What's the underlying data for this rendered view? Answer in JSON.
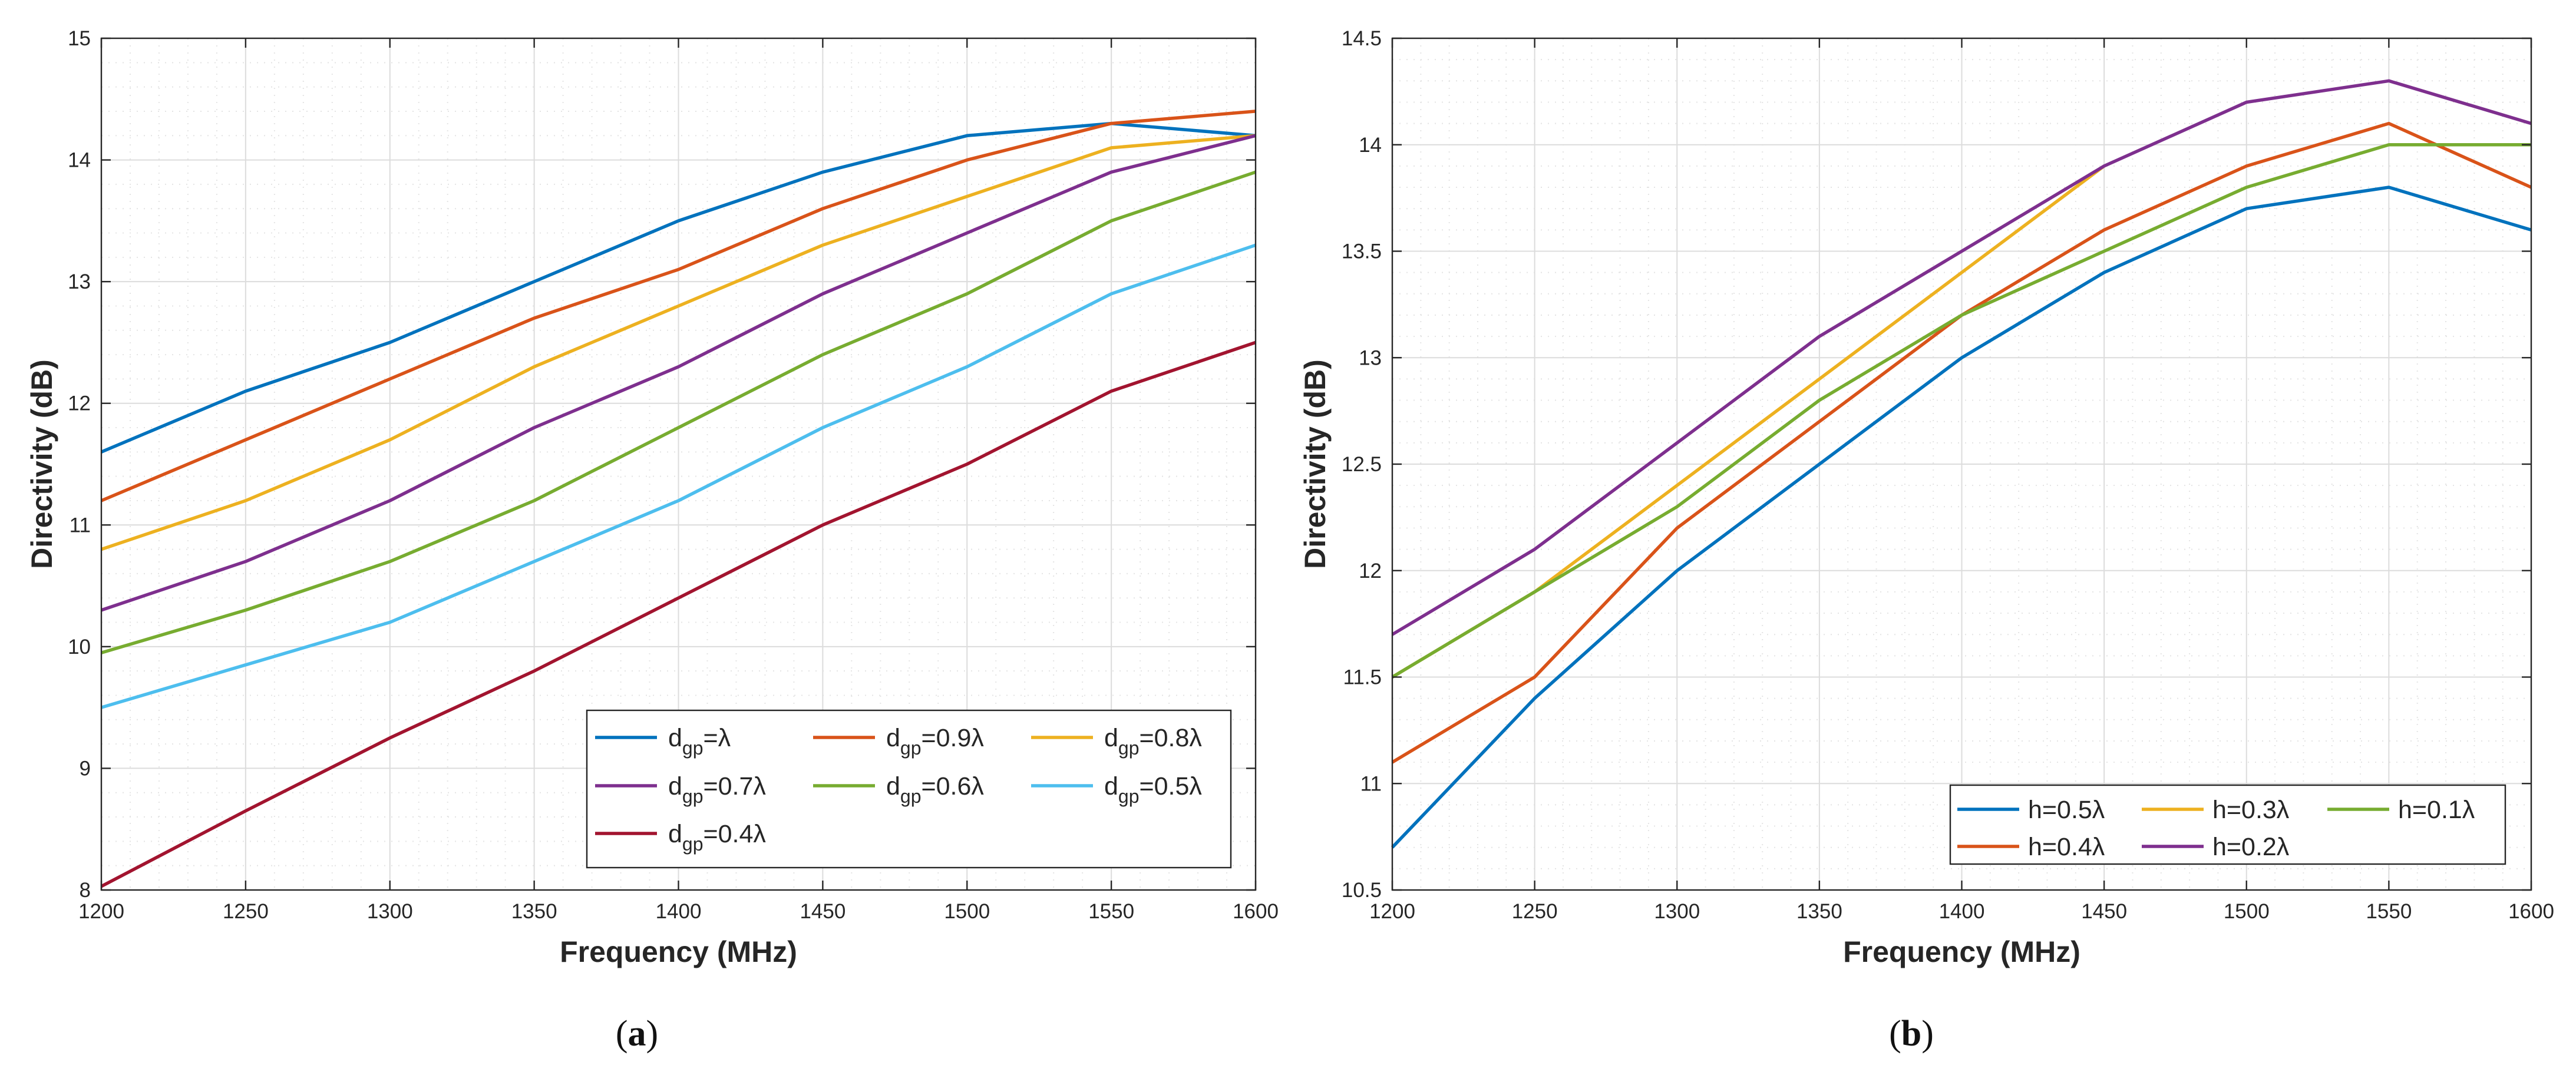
{
  "chart_data": [
    {
      "id": "a",
      "type": "line",
      "caption_open": "(",
      "caption_letter": "a",
      "caption_close": ")",
      "xlabel": "Frequency (MHz)",
      "ylabel": "Directivity (dB)",
      "xlim": [
        1200,
        1600
      ],
      "ylim": [
        8,
        15
      ],
      "xticks": [
        1200,
        1250,
        1300,
        1350,
        1400,
        1450,
        1500,
        1550,
        1600
      ],
      "yticks": [
        8,
        9,
        10,
        11,
        12,
        13,
        14,
        15
      ],
      "ytick_labels": [
        "8",
        "9",
        "10",
        "11",
        "12",
        "13",
        "14",
        "15"
      ],
      "legend_position": "bottom-right",
      "legend_columns": 3,
      "x": [
        1200,
        1250,
        1300,
        1350,
        1400,
        1450,
        1500,
        1550,
        1600
      ],
      "series": [
        {
          "name": "d_gp=λ",
          "label_main": "d",
          "label_sub": "gp",
          "label_rest": "=λ",
          "color": "#0072BD",
          "values": [
            11.6,
            12.1,
            12.5,
            13.0,
            13.5,
            13.9,
            14.2,
            14.3,
            14.2
          ]
        },
        {
          "name": "d_gp=0.9λ",
          "label_main": "d",
          "label_sub": "gp",
          "label_rest": "=0.9λ",
          "color": "#D95319",
          "values": [
            11.2,
            11.7,
            12.2,
            12.7,
            13.1,
            13.6,
            14.0,
            14.3,
            14.4
          ]
        },
        {
          "name": "d_gp=0.8λ",
          "label_main": "d",
          "label_sub": "gp",
          "label_rest": "=0.8λ",
          "color": "#EDB120",
          "values": [
            10.8,
            11.2,
            11.7,
            12.3,
            12.8,
            13.3,
            13.7,
            14.1,
            14.2
          ]
        },
        {
          "name": "d_gp=0.7λ",
          "label_main": "d",
          "label_sub": "gp",
          "label_rest": "=0.7λ",
          "color": "#7E2F8E",
          "values": [
            10.3,
            10.7,
            11.2,
            11.8,
            12.3,
            12.9,
            13.4,
            13.9,
            14.2
          ]
        },
        {
          "name": "d_gp=0.6λ",
          "label_main": "d",
          "label_sub": "gp",
          "label_rest": "=0.6λ",
          "color": "#77AC30",
          "values": [
            9.95,
            10.3,
            10.7,
            11.2,
            11.8,
            12.4,
            12.9,
            13.5,
            13.9
          ]
        },
        {
          "name": "d_gp=0.5λ",
          "label_main": "d",
          "label_sub": "gp",
          "label_rest": "=0.5λ",
          "color": "#4DBEEE",
          "values": [
            9.5,
            9.85,
            10.2,
            10.7,
            11.2,
            11.8,
            12.3,
            12.9,
            13.3
          ]
        },
        {
          "name": "d_gp=0.4λ",
          "label_main": "d",
          "label_sub": "gp",
          "label_rest": "=0.4λ",
          "color": "#A2142F",
          "values": [
            8.03,
            8.65,
            9.25,
            9.8,
            10.4,
            11.0,
            11.5,
            12.1,
            12.5
          ]
        }
      ]
    },
    {
      "id": "b",
      "type": "line",
      "caption_open": "(",
      "caption_letter": "b",
      "caption_close": ")",
      "xlabel": "Frequency (MHz)",
      "ylabel": "Directivity (dB)",
      "xlim": [
        1200,
        1600
      ],
      "ylim": [
        10.5,
        14.5
      ],
      "xticks": [
        1200,
        1250,
        1300,
        1350,
        1400,
        1450,
        1500,
        1550,
        1600
      ],
      "yticks": [
        10.5,
        11,
        11.5,
        12,
        12.5,
        13,
        13.5,
        14,
        14.5
      ],
      "ytick_labels": [
        "10.5",
        "11",
        "11.5",
        "12",
        "12.5",
        "13",
        "13.5",
        "14",
        "14.5"
      ],
      "legend_position": "bottom-right",
      "legend_columns": 3,
      "x": [
        1200,
        1250,
        1300,
        1350,
        1400,
        1450,
        1500,
        1550,
        1600
      ],
      "series": [
        {
          "name": "h=0.5λ",
          "label_main": "h=0.5λ",
          "label_sub": "",
          "label_rest": "",
          "color": "#0072BD",
          "values": [
            10.7,
            11.4,
            12.0,
            12.5,
            13.0,
            13.4,
            13.7,
            13.8,
            13.6
          ]
        },
        {
          "name": "h=0.4λ",
          "label_main": "h=0.4λ",
          "label_sub": "",
          "label_rest": "",
          "color": "#D95319",
          "values": [
            11.1,
            11.5,
            12.2,
            12.7,
            13.2,
            13.6,
            13.9,
            14.1,
            13.8
          ]
        },
        {
          "name": "h=0.3λ",
          "label_main": "h=0.3λ",
          "label_sub": "",
          "label_rest": "",
          "color": "#EDB120",
          "values": [
            11.5,
            11.9,
            12.4,
            12.9,
            13.4,
            13.9,
            null,
            null,
            null
          ]
        },
        {
          "name": "h=0.2λ",
          "label_main": "h=0.2λ",
          "label_sub": "",
          "label_rest": "",
          "color": "#7E2F8E",
          "values": [
            11.7,
            12.1,
            12.6,
            13.1,
            13.5,
            13.9,
            14.2,
            14.3,
            14.1
          ]
        },
        {
          "name": "h=0.1λ",
          "label_main": "h=0.1λ",
          "label_sub": "",
          "label_rest": "",
          "color": "#77AC30",
          "values": [
            11.5,
            11.9,
            12.3,
            12.8,
            13.2,
            13.5,
            13.8,
            14.0,
            14.0
          ]
        }
      ]
    }
  ]
}
